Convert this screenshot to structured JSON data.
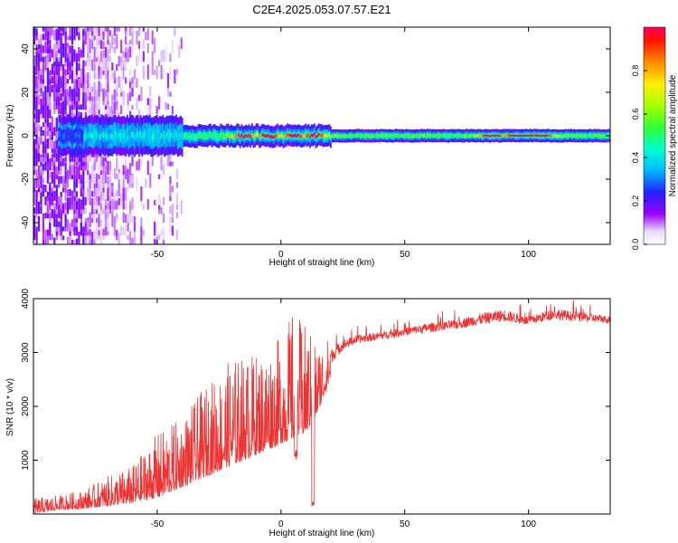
{
  "page_title": "C2E4.2025.053.07.57.E21",
  "chart_data": [
    {
      "type": "heatmap",
      "title": "C2E4.2025.053.07.57.E21",
      "xlabel": "Height of straight line (km)",
      "ylabel": "Frequency (Hz)",
      "xlim": [
        -100,
        133
      ],
      "ylim": [
        -50,
        50
      ],
      "x_ticks": [
        -50,
        0,
        50,
        100
      ],
      "y_ticks": [
        -40,
        -20,
        0,
        20,
        40
      ],
      "colorbar": {
        "label": "Normalized spectral amplitude",
        "range": [
          0,
          1
        ],
        "ticks": [
          0.0,
          0.2,
          0.4,
          0.6,
          0.8
        ]
      },
      "ridge": {
        "description_values": "ridge centred near 0 Hz across heights",
        "center_hz": 0,
        "peak_heights_km": [
          -15,
          -5,
          5,
          13,
          85,
          95,
          98,
          105
        ]
      },
      "grid": false
    },
    {
      "type": "line",
      "xlabel": "Height of straight line (km)",
      "ylabel": "SNR (10 * v/v)",
      "xlim": [
        -100,
        133
      ],
      "ylim": [
        0,
        4000
      ],
      "x_ticks": [
        -50,
        0,
        50,
        100
      ],
      "y_ticks": [
        1000,
        2000,
        3000,
        4000
      ],
      "color": "#ee3333",
      "envelope": {
        "x": [
          -100,
          -90,
          -80,
          -70,
          -60,
          -50,
          -40,
          -30,
          -20,
          -10,
          0,
          5,
          10,
          15,
          20,
          25,
          30,
          40,
          50,
          60,
          70,
          80,
          90,
          100,
          110,
          120,
          133
        ],
        "low": [
          0,
          80,
          100,
          150,
          200,
          300,
          500,
          700,
          900,
          1100,
          1300,
          1400,
          1500,
          1900,
          2500,
          2850,
          3000,
          3100,
          3150,
          3200,
          3250,
          3300,
          3350,
          3350,
          3400,
          3400,
          3400
        ],
        "high": [
          300,
          350,
          450,
          700,
          900,
          1500,
          1800,
          2400,
          2900,
          3000,
          3300,
          3800,
          3500,
          3200,
          3300,
          3400,
          3450,
          3500,
          3600,
          3700,
          3750,
          3900,
          4000,
          3800,
          4000,
          3900,
          3800
        ]
      },
      "notable_dips": [
        {
          "x": 6,
          "y": 1000
        },
        {
          "x": 13,
          "y": 100
        }
      ],
      "grid": false
    }
  ]
}
